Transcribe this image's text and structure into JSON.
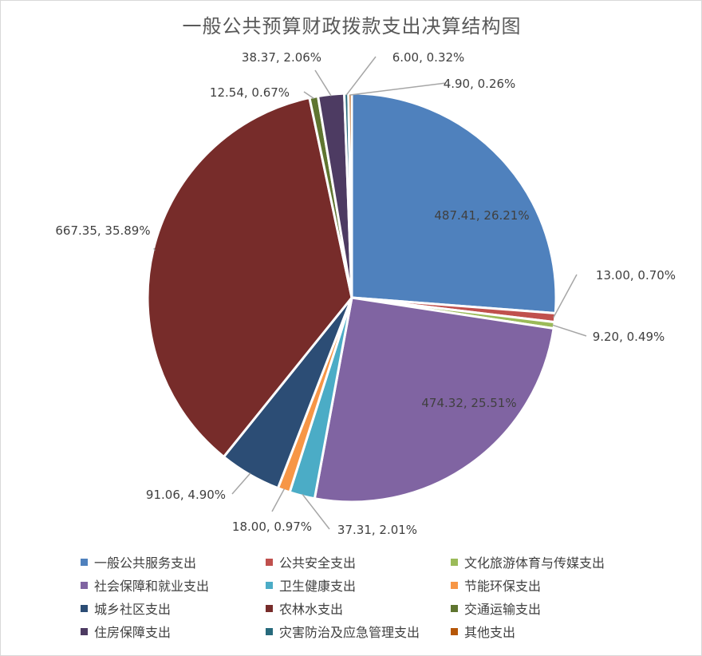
{
  "chart_data": {
    "type": "pie",
    "title": "一般公共预算财政拨款支出决算结构图",
    "legend_position": "bottom",
    "slices": [
      {
        "name": "一般公共服务支出",
        "value": 487.41,
        "percent": "26.21%",
        "label": "487.41, 26.21%",
        "color": "#4F81BD"
      },
      {
        "name": "公共安全支出",
        "value": 13.0,
        "percent": "0.70%",
        "label": "13.00, 0.70%",
        "color": "#C0504D"
      },
      {
        "name": "文化旅游体育与传媒支出",
        "value": 9.2,
        "percent": "0.49%",
        "label": "9.20, 0.49%",
        "color": "#9BBB59"
      },
      {
        "name": "社会保障和就业支出",
        "value": 474.32,
        "percent": "25.51%",
        "label": "474.32, 25.51%",
        "color": "#8064A2"
      },
      {
        "name": "卫生健康支出",
        "value": 37.31,
        "percent": "2.01%",
        "label": "37.31, 2.01%",
        "color": "#4BACC6"
      },
      {
        "name": "节能环保支出",
        "value": 18.0,
        "percent": "0.97%",
        "label": "18.00, 0.97%",
        "color": "#F79646"
      },
      {
        "name": "城乡社区支出",
        "value": 91.06,
        "percent": "4.90%",
        "label": "91.06, 4.90%",
        "color": "#2C4D75"
      },
      {
        "name": "农林水支出",
        "value": 667.35,
        "percent": "35.89%",
        "label": "667.35, 35.89%",
        "color": "#772C2A"
      },
      {
        "name": "交通运输支出",
        "value": 12.54,
        "percent": "0.67%",
        "label": "12.54, 0.67%",
        "color": "#5F7530"
      },
      {
        "name": "住房保障支出",
        "value": 38.37,
        "percent": "2.06%",
        "label": "38.37, 2.06%",
        "color": "#4D3B62"
      },
      {
        "name": "灾害防治及应急管理支出",
        "value": 6.0,
        "percent": "0.32%",
        "label": "6.00, 0.32%",
        "color": "#276A7C"
      },
      {
        "name": "其他支出",
        "value": 4.9,
        "percent": "0.26%",
        "label": "4.90, 0.26%",
        "color": "#B65708"
      }
    ]
  }
}
